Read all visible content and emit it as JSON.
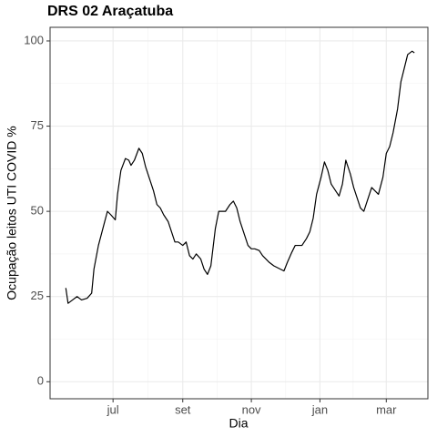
{
  "chart_data": {
    "type": "line",
    "title": "DRS 02 Araçatuba",
    "xlabel": "Dia",
    "ylabel": "Ocupação leitos UTI COVID %",
    "x": [
      -42,
      -40,
      -36,
      -32,
      -28,
      -23,
      -19,
      -17,
      -13,
      -9,
      -5,
      -2,
      2,
      4,
      7,
      11,
      14,
      16,
      19,
      23,
      26,
      29,
      32,
      36,
      39,
      42,
      45,
      49,
      52,
      55,
      58,
      62,
      65,
      68,
      71,
      74,
      78,
      81,
      84,
      87,
      91,
      94,
      97,
      100,
      104,
      107,
      110,
      113,
      117,
      120,
      123,
      126,
      130,
      133,
      136,
      139,
      143,
      146,
      149,
      152,
      155,
      159,
      162,
      165,
      168,
      172,
      175,
      178,
      181,
      185,
      188,
      191,
      194,
      198,
      201,
      204,
      207,
      211,
      214,
      217,
      220,
      223,
      227,
      230,
      233,
      236,
      240,
      243,
      246,
      249,
      253,
      256,
      259,
      262,
      266,
      268
    ],
    "series": [
      {
        "name": "DRS 02 Araçatuba",
        "color": "#000000",
        "values": [
          27.5,
          23,
          24,
          25,
          24,
          24.5,
          26,
          33,
          40,
          45,
          50,
          49,
          47.5,
          55,
          62,
          65.5,
          65,
          63.5,
          65,
          68.5,
          67,
          63,
          60,
          56,
          52,
          51,
          49,
          47,
          44,
          41,
          41,
          40,
          41,
          37,
          36,
          37.5,
          36,
          33,
          31.5,
          34,
          45,
          50,
          50,
          50,
          52,
          53,
          51,
          47,
          43,
          40,
          39,
          39,
          38.5,
          37,
          36,
          35,
          34,
          33.5,
          33,
          32.5,
          35,
          38,
          40,
          40,
          40,
          42,
          44,
          48,
          55,
          60,
          64.5,
          62,
          58,
          56,
          54.5,
          58,
          65,
          61,
          57,
          54,
          51,
          50,
          54,
          57,
          56,
          55,
          60,
          67,
          69,
          73,
          80,
          88,
          92,
          96,
          97,
          96.5
        ]
      }
    ],
    "xlim": [
      -56,
      280
    ],
    "xticks": [
      {
        "value": 0,
        "label": "jul"
      },
      {
        "value": 62,
        "label": "set"
      },
      {
        "value": 123,
        "label": "nov"
      },
      {
        "value": 184,
        "label": "jan"
      },
      {
        "value": 243,
        "label": "mar"
      }
    ],
    "ylim": [
      -5,
      104
    ],
    "yticks": [
      0,
      25,
      50,
      75,
      100
    ],
    "grid": true
  }
}
